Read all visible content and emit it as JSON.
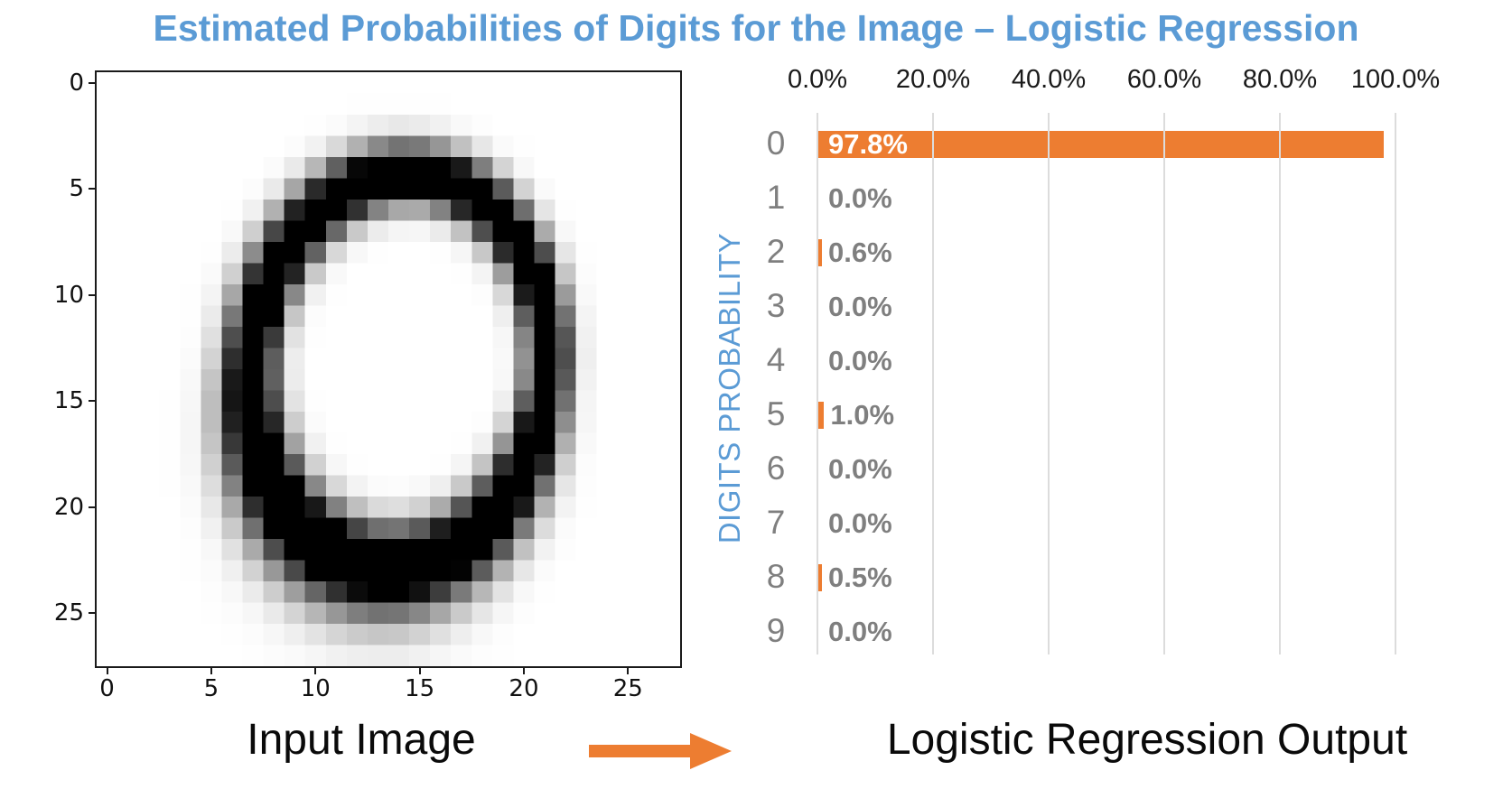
{
  "title": "Estimated Probabilities of Digits for the Image – Logistic Regression",
  "colors": {
    "title_blue": "#5B9BD5",
    "bar_orange": "#ED7D31",
    "label_gray": "#7F7F7F",
    "gridline_gray": "#DCDCDC"
  },
  "input_image": {
    "caption": "Input Image",
    "digit": "0",
    "x_ticks": [
      "0",
      "5",
      "10",
      "15",
      "20",
      "25"
    ],
    "y_ticks": [
      "0",
      "5",
      "10",
      "15",
      "20",
      "25"
    ]
  },
  "output": {
    "caption": "Logistic Regression Output",
    "y_axis_label": "DIGITS PROBABILITY"
  },
  "chart_data": [
    {
      "type": "heatmap",
      "title": "Input Image",
      "description": "28x28 grayscale handwritten digit 0 (MNIST-style), dark ring on white background",
      "x_ticks": [
        0,
        5,
        10,
        15,
        20,
        25
      ],
      "y_ticks": [
        0,
        5,
        10,
        15,
        20,
        25
      ],
      "xlim": [
        0,
        27
      ],
      "ylim": [
        27,
        0
      ]
    },
    {
      "type": "bar",
      "orientation": "horizontal",
      "title": "Logistic Regression Output",
      "categories": [
        "0",
        "1",
        "2",
        "3",
        "4",
        "5",
        "6",
        "7",
        "8",
        "9"
      ],
      "values": [
        97.8,
        0.0,
        0.6,
        0.0,
        0.0,
        1.0,
        0.0,
        0.0,
        0.5,
        0.0
      ],
      "value_labels": [
        "97.8%",
        "0.0%",
        "0.6%",
        "0.0%",
        "0.0%",
        "1.0%",
        "0.0%",
        "0.0%",
        "0.5%",
        "0.0%"
      ],
      "x_tick_labels": [
        "0.0%",
        "20.0%",
        "40.0%",
        "60.0%",
        "80.0%",
        "100.0%"
      ],
      "xlim": [
        0,
        100
      ],
      "ylabel": "DIGITS PROBABILITY",
      "xlabel": "",
      "grid": "vertical",
      "legend_position": "none",
      "bar_color": "#ED7D31"
    }
  ]
}
